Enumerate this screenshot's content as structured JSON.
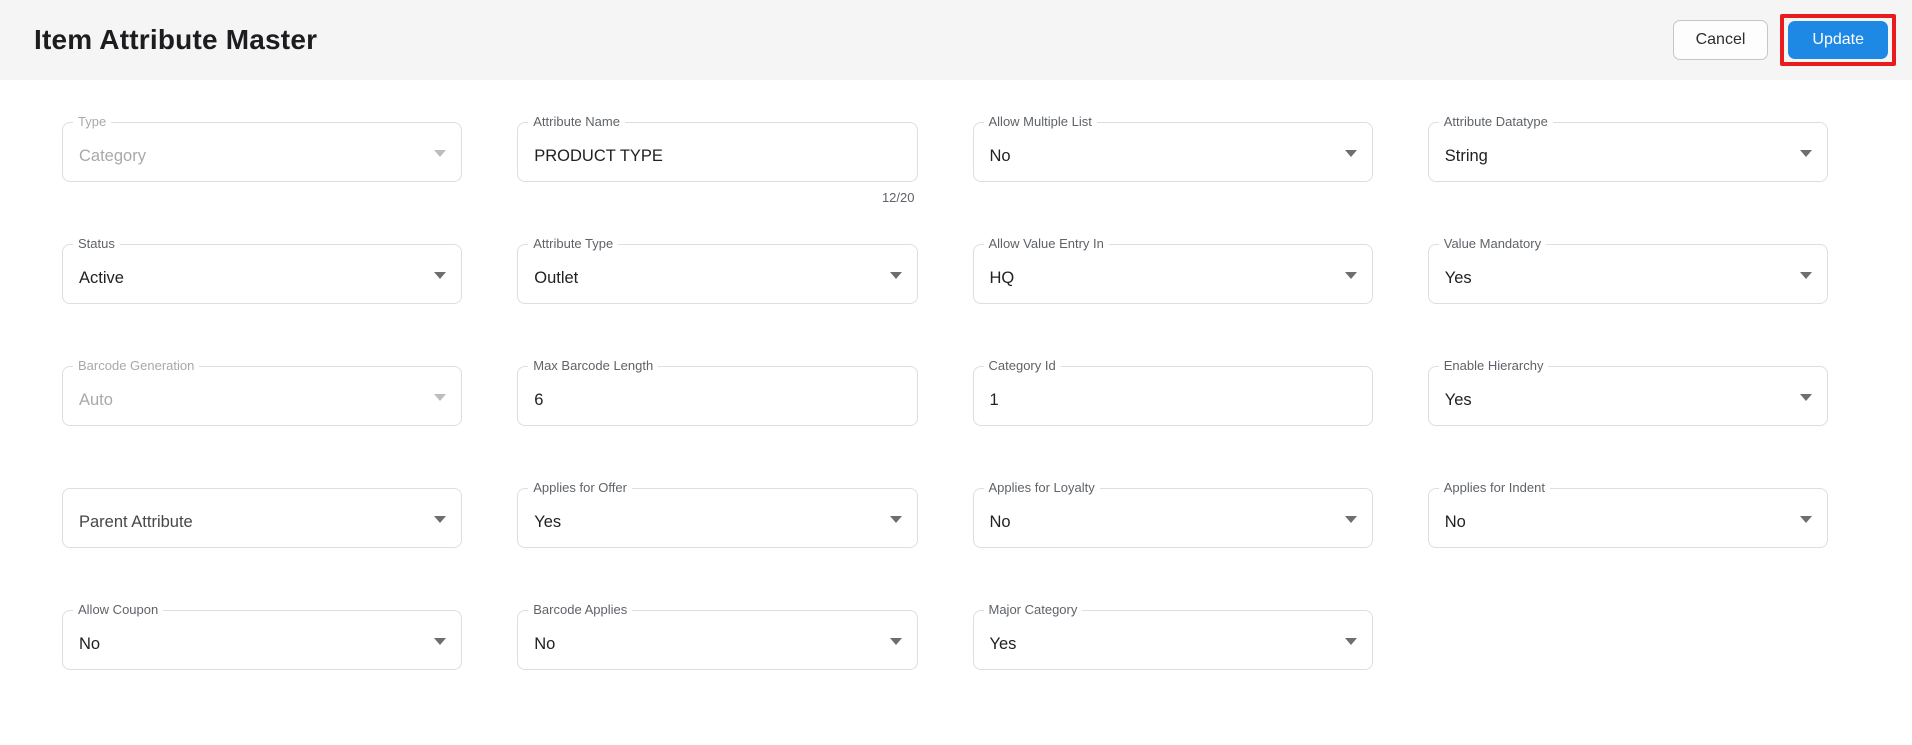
{
  "header": {
    "title": "Item Attribute Master",
    "cancel_label": "Cancel",
    "update_label": "Update"
  },
  "colors": {
    "accent_blue": "#1e88e5",
    "annotation_red": "#e81c1c",
    "header_bg": "#f5f5f5"
  },
  "form": {
    "fields": [
      {
        "label": "Type",
        "value": "Category",
        "type": "select",
        "disabled": true
      },
      {
        "label": "Attribute Name",
        "value": "PRODUCT TYPE",
        "type": "text",
        "counter": "12/20"
      },
      {
        "label": "Allow Multiple List",
        "value": "No",
        "type": "select"
      },
      {
        "label": "Attribute Datatype",
        "value": "String",
        "type": "select"
      },
      {
        "label": "Status",
        "value": "Active",
        "type": "select"
      },
      {
        "label": "Attribute Type",
        "value": "Outlet",
        "type": "select"
      },
      {
        "label": "Allow Value Entry In",
        "value": "HQ",
        "type": "select"
      },
      {
        "label": "Value Mandatory",
        "value": "Yes",
        "type": "select"
      },
      {
        "label": "Barcode Generation",
        "value": "Auto",
        "type": "select",
        "disabled": true
      },
      {
        "label": "Max Barcode Length",
        "value": "6",
        "type": "text"
      },
      {
        "label": "Category Id",
        "value": "1",
        "type": "text"
      },
      {
        "label": "Enable Hierarchy",
        "value": "Yes",
        "type": "select"
      },
      {
        "label": "Parent Attribute",
        "value": "",
        "type": "select",
        "placeholder_inline": true
      },
      {
        "label": "Applies for Offer",
        "value": "Yes",
        "type": "select"
      },
      {
        "label": "Applies for Loyalty",
        "value": "No",
        "type": "select"
      },
      {
        "label": "Applies for Indent",
        "value": "No",
        "type": "select"
      },
      {
        "label": "Allow Coupon",
        "value": "No",
        "type": "select"
      },
      {
        "label": "Barcode Applies",
        "value": "No",
        "type": "select"
      },
      {
        "label": "Major Category",
        "value": "Yes",
        "type": "select"
      }
    ]
  }
}
